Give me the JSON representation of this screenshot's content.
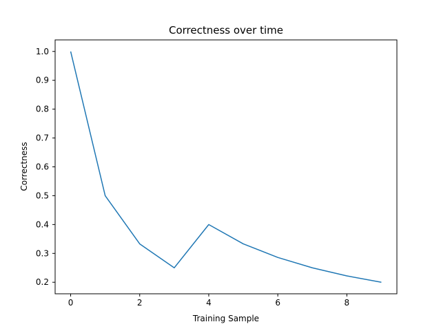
{
  "chart_data": {
    "type": "line",
    "title": "Correctness over time",
    "xlabel": "Training Sample",
    "ylabel": "Correctness",
    "x": [
      0,
      1,
      2,
      3,
      4,
      5,
      6,
      7,
      8,
      9
    ],
    "series": [
      {
        "values": [
          1.0,
          0.5,
          0.333,
          0.25,
          0.4,
          0.333,
          0.286,
          0.25,
          0.222,
          0.2
        ],
        "color": "#1f77b4"
      }
    ],
    "xlim": [
      -0.45,
      9.45
    ],
    "ylim": [
      0.16,
      1.04
    ],
    "xticks": [
      0,
      2,
      4,
      6,
      8
    ],
    "xtick_labels": [
      "0",
      "2",
      "4",
      "6",
      "8"
    ],
    "yticks": [
      0.2,
      0.3,
      0.4,
      0.5,
      0.6,
      0.7,
      0.8,
      0.9,
      1.0
    ],
    "ytick_labels": [
      "0.2",
      "0.3",
      "0.4",
      "0.5",
      "0.6",
      "0.7",
      "0.8",
      "0.9",
      "1.0"
    ],
    "grid": false,
    "legend": false
  }
}
